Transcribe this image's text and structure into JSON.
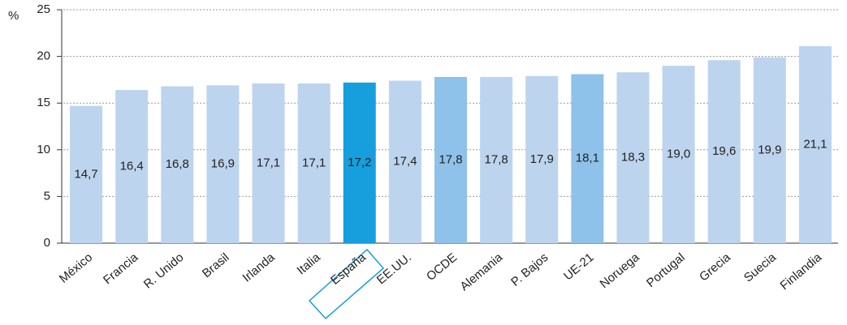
{
  "chart_data": {
    "type": "bar",
    "ylabel": "%",
    "categories": [
      "México",
      "Francia",
      "R. Unido",
      "Brasil",
      "Irlanda",
      "Italia",
      "España",
      "EE.UU.",
      "OCDE",
      "Alemania",
      "P. Bajos",
      "UE-21",
      "Noruega",
      "Portugal",
      "Grecia",
      "Suecia",
      "Finlandia"
    ],
    "values": [
      14.7,
      16.4,
      16.8,
      16.9,
      17.1,
      17.1,
      17.2,
      17.4,
      17.8,
      17.8,
      17.9,
      18.1,
      18.3,
      19.0,
      19.6,
      19.9,
      21.1
    ],
    "value_labels": [
      "14,7",
      "16,4",
      "16,8",
      "16,9",
      "17,1",
      "17,1",
      "17,2",
      "17,4",
      "17,8",
      "17,8",
      "17,9",
      "18,1",
      "18,3",
      "19,0",
      "19,6",
      "19,9",
      "21,1"
    ],
    "colors": [
      "#bdd4ee",
      "#bdd4ee",
      "#bdd4ee",
      "#bdd4ee",
      "#bdd4ee",
      "#bdd4ee",
      "#169fdc",
      "#bdd4ee",
      "#8ec2ea",
      "#bdd4ee",
      "#bdd4ee",
      "#8ec2ea",
      "#bdd4ee",
      "#bdd4ee",
      "#bdd4ee",
      "#bdd4ee",
      "#bdd4ee"
    ],
    "ylim": [
      0,
      25
    ],
    "yticks": [
      0,
      5,
      10,
      15,
      20,
      25
    ],
    "grid": true
  }
}
